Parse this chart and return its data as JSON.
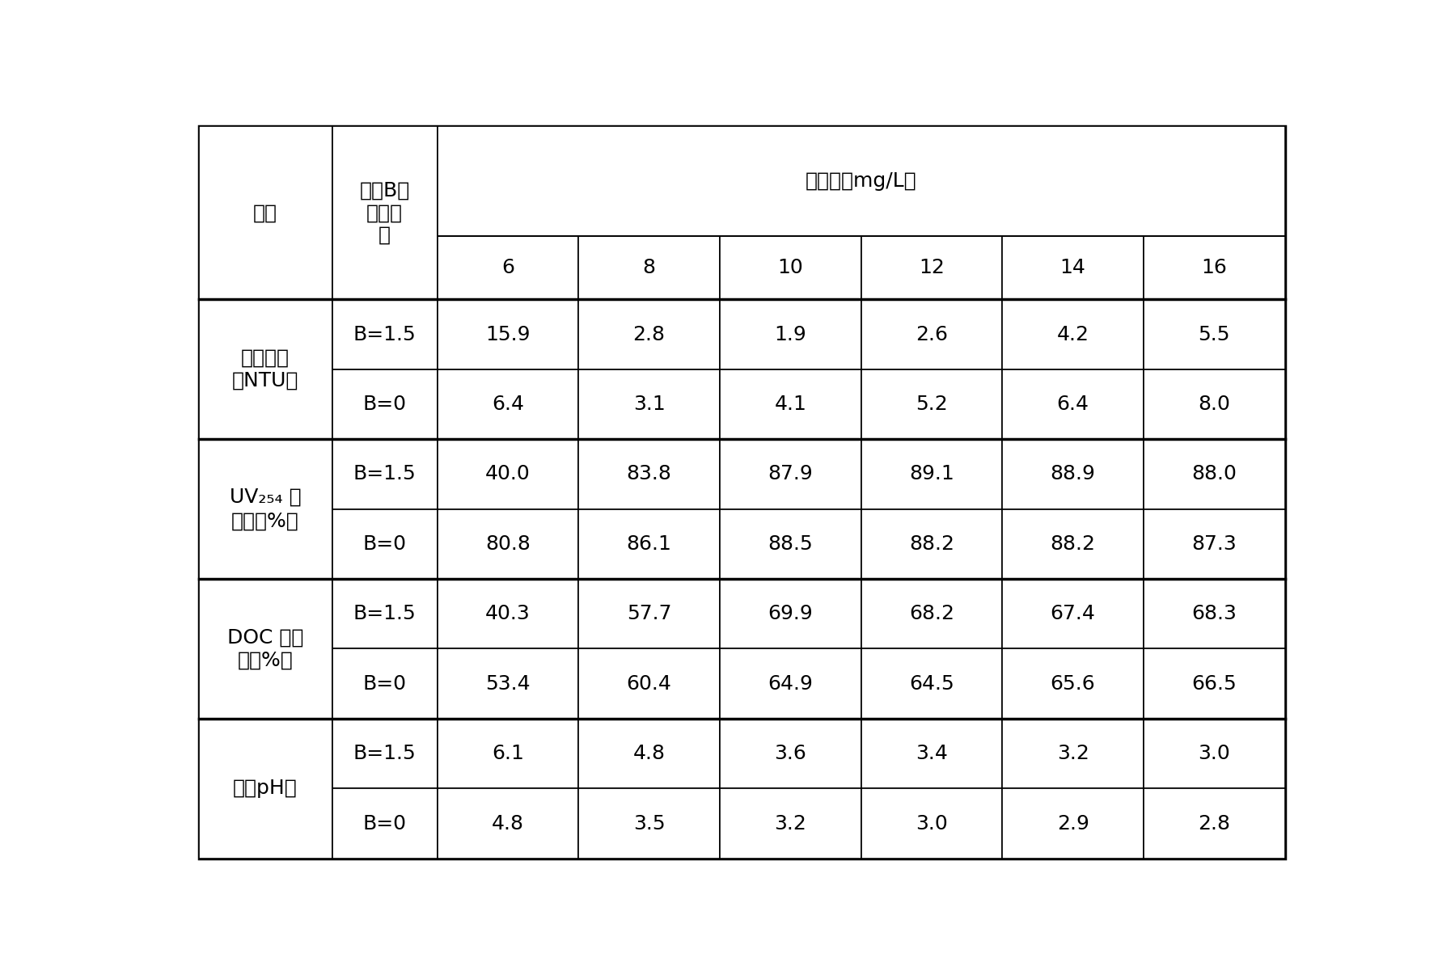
{
  "col0_header": "指标",
  "col1_header": "不同B值\n的絮凝\n剂",
  "top_span_header": "投加量（mg/L）",
  "dosage_cols": [
    "6",
    "8",
    "10",
    "12",
    "14",
    "16"
  ],
  "groups": [
    {
      "label_lines": [
        "剩余浊度",
        "（NTU）"
      ],
      "sub_rows": [
        {
          "b_val": "B=1.5",
          "values": [
            "15.9",
            "2.8",
            "1.9",
            "2.6",
            "4.2",
            "5.5"
          ]
        },
        {
          "b_val": "B=0",
          "values": [
            "6.4",
            "3.1",
            "4.1",
            "5.2",
            "6.4",
            "8.0"
          ]
        }
      ]
    },
    {
      "label_lines": [
        "UV₂₅₄ 去",
        "除率（%）"
      ],
      "uv_label": true,
      "sub_rows": [
        {
          "b_val": "B=1.5",
          "values": [
            "40.0",
            "83.8",
            "87.9",
            "89.1",
            "88.9",
            "88.0"
          ]
        },
        {
          "b_val": "B=0",
          "values": [
            "80.8",
            "86.1",
            "88.5",
            "88.2",
            "88.2",
            "87.3"
          ]
        }
      ]
    },
    {
      "label_lines": [
        "DOC 去除",
        "率（%）"
      ],
      "sub_rows": [
        {
          "b_val": "B=1.5",
          "values": [
            "40.3",
            "57.7",
            "69.9",
            "68.2",
            "67.4",
            "68.3"
          ]
        },
        {
          "b_val": "B=0",
          "values": [
            "53.4",
            "60.4",
            "64.9",
            "64.5",
            "65.6",
            "66.5"
          ]
        }
      ]
    },
    {
      "label_lines": [
        "出水pH値"
      ],
      "sub_rows": [
        {
          "b_val": "B=1.5",
          "values": [
            "6.1",
            "4.8",
            "3.6",
            "3.4",
            "3.2",
            "3.0"
          ]
        },
        {
          "b_val": "B=0",
          "values": [
            "4.8",
            "3.5",
            "3.2",
            "3.0",
            "2.9",
            "2.8"
          ]
        }
      ]
    }
  ],
  "font_size": 18,
  "sub_font_size": 12,
  "bg_color": "#ffffff",
  "line_color": "#000000",
  "text_color": "#000000",
  "outer_lw": 2.5,
  "inner_lw": 1.2,
  "thick_lw": 2.5
}
